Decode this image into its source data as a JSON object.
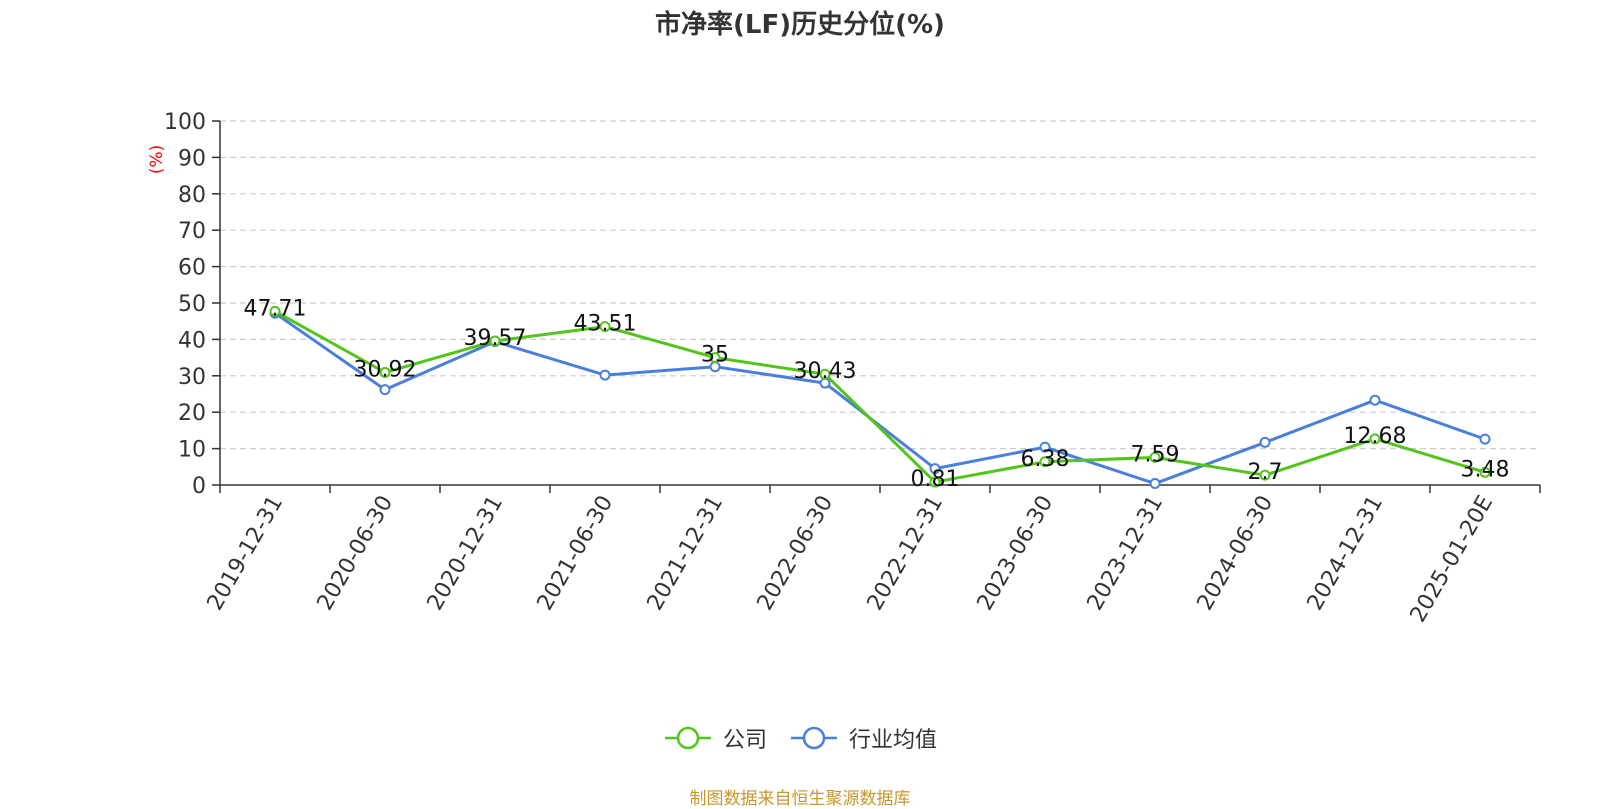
{
  "chart_data": {
    "type": "line",
    "title": "市净率(LF)历史分位(%)",
    "ylabel": "(%)",
    "xlabel": "",
    "ylim": [
      0,
      100
    ],
    "yticks": [
      0,
      10,
      20,
      30,
      40,
      50,
      60,
      70,
      80,
      90,
      100
    ],
    "grid": true,
    "legend_position": "bottom",
    "categories": [
      "2019-12-31",
      "2020-06-30",
      "2020-12-31",
      "2021-06-30",
      "2021-12-31",
      "2022-06-30",
      "2022-12-31",
      "2023-06-30",
      "2023-12-31",
      "2024-06-30",
      "2024-12-31",
      "2025-01-20E"
    ],
    "series": [
      {
        "name": "公司",
        "color": "#52c41a",
        "values": [
          47.71,
          30.92,
          39.57,
          43.51,
          35,
          30.43,
          0.81,
          6.38,
          7.59,
          2.7,
          12.68,
          3.48
        ],
        "labels": [
          "47.71",
          "30.92",
          "39.57",
          "43.51",
          "35",
          "30.43",
          "0.81",
          "6.38",
          "7.59",
          "2.7",
          "12.68",
          "3.48"
        ]
      },
      {
        "name": "行业均值",
        "color": "#4a7fdc",
        "values": [
          47.2,
          26.2,
          39.4,
          30.2,
          32.5,
          28.0,
          4.5,
          10.4,
          0.4,
          11.7,
          23.3,
          12.6
        ]
      }
    ]
  },
  "footer": {
    "source": "制图数据来自恒生聚源数据库"
  }
}
